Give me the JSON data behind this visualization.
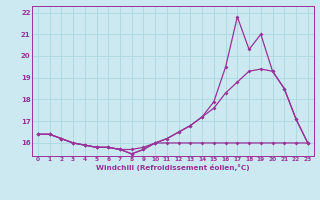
{
  "title": "",
  "xlabel": "Windchill (Refroidissement éolien,°C)",
  "bg_color": "#cce8f0",
  "line_color": "#993399",
  "grid_color": "#aad8e0",
  "hours": [
    0,
    1,
    2,
    3,
    4,
    5,
    6,
    7,
    8,
    9,
    10,
    11,
    12,
    13,
    14,
    15,
    16,
    17,
    18,
    19,
    20,
    21,
    22,
    23
  ],
  "line1": [
    16.4,
    16.4,
    16.2,
    16.0,
    15.9,
    15.8,
    15.8,
    15.7,
    15.7,
    15.8,
    16.0,
    16.0,
    16.0,
    16.0,
    16.0,
    16.0,
    16.0,
    16.0,
    16.0,
    16.0,
    16.0,
    16.0,
    16.0,
    16.0
  ],
  "line2": [
    16.4,
    16.4,
    16.2,
    16.0,
    15.9,
    15.8,
    15.8,
    15.7,
    15.5,
    15.7,
    16.0,
    16.2,
    16.5,
    16.8,
    17.2,
    17.6,
    18.3,
    18.8,
    19.3,
    19.4,
    19.3,
    18.5,
    17.1,
    16.0
  ],
  "line3": [
    16.4,
    16.4,
    16.2,
    16.0,
    15.9,
    15.8,
    15.8,
    15.7,
    15.5,
    15.7,
    16.0,
    16.2,
    16.5,
    16.8,
    17.2,
    17.9,
    19.5,
    21.8,
    20.3,
    21.0,
    19.3,
    18.5,
    17.1,
    16.0
  ],
  "ylim_min": 15.4,
  "ylim_max": 22.3,
  "yticks": [
    16,
    17,
    18,
    19,
    20,
    21,
    22
  ],
  "xticks": [
    0,
    1,
    2,
    3,
    4,
    5,
    6,
    7,
    8,
    9,
    10,
    11,
    12,
    13,
    14,
    15,
    16,
    17,
    18,
    19,
    20,
    21,
    22,
    23
  ]
}
